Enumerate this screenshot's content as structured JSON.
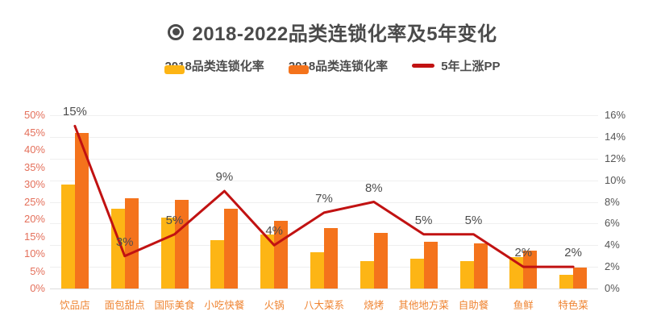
{
  "title": {
    "text": "2018-2022品类连锁化率及5年变化"
  },
  "legend": {
    "items": [
      {
        "label": "2018品类连锁化率",
        "color": "#FDB515",
        "shape": "bar"
      },
      {
        "label": "2018品类连锁化率",
        "color": "#F4731C",
        "shape": "bar"
      },
      {
        "label": "5年上涨PP",
        "color": "#C11212",
        "shape": "line"
      }
    ]
  },
  "chart_data": {
    "type": "bar+line",
    "title": "2018-2022品类连锁化率及5年变化",
    "categories": [
      "饮品店",
      "面包甜点",
      "国际美食",
      "小吃快餐",
      "火锅",
      "八大菜系",
      "烧烤",
      "其他地方菜",
      "自助餐",
      "鱼鲜",
      "特色菜"
    ],
    "series": [
      {
        "name": "2018品类连锁化率",
        "type": "bar",
        "axis": "left",
        "color": "#FDB515",
        "values": [
          30,
          23,
          20.5,
          14,
          15.5,
          10.5,
          8,
          8.5,
          8,
          9,
          4
        ]
      },
      {
        "name": "2018品类连锁化率",
        "type": "bar",
        "axis": "left",
        "color": "#F4731C",
        "values": [
          45,
          26,
          25.5,
          23,
          19.5,
          17.5,
          16,
          13.5,
          13,
          11,
          6
        ]
      },
      {
        "name": "5年上涨PP",
        "type": "line",
        "axis": "right",
        "color": "#C11212",
        "values": [
          15,
          3,
          5,
          9,
          4,
          7,
          8,
          5,
          5,
          2,
          2
        ],
        "point_labels": [
          "15%",
          "3%",
          "5%",
          "9%",
          "4%",
          "7%",
          "8%",
          "5%",
          "5%",
          "2%",
          "2%"
        ]
      }
    ],
    "left_axis": {
      "min": 0,
      "max": 50,
      "step": 5,
      "suffix": "%",
      "color": "#E4705B",
      "tick_labels": [
        "0%",
        "5%",
        "10%",
        "15%",
        "20%",
        "25%",
        "30%",
        "35%",
        "40%",
        "45%",
        "50%"
      ]
    },
    "right_axis": {
      "min": 0,
      "max": 16,
      "step": 2,
      "suffix": "%",
      "color": "#555555",
      "tick_labels": [
        "0%",
        "2%",
        "4%",
        "6%",
        "8%",
        "10%",
        "12%",
        "14%",
        "16%"
      ]
    },
    "x_label_color": "#EF8432",
    "grid": true,
    "legend_position": "top"
  }
}
